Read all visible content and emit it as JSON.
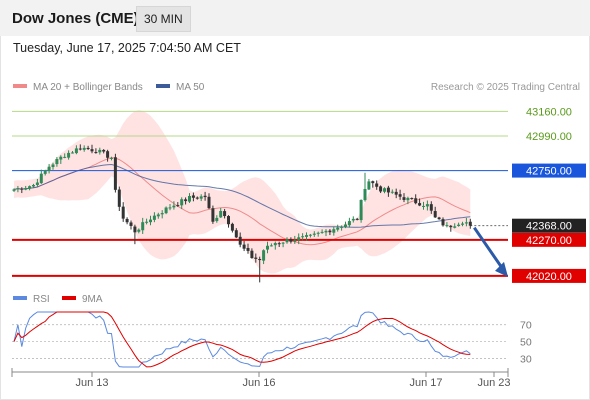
{
  "header": {
    "symbol": "Dow Jones (CME)",
    "interval": "30 MIN",
    "timestamp": "Tuesday, June 17, 2025 7:04:50 AM CET"
  },
  "legend": {
    "ma20": "MA 20 + Bollinger Bands",
    "ma50": "MA 50",
    "copyright": "Research © 2025 Trading Central",
    "rsi": "RSI",
    "ma9": "9MA"
  },
  "colors": {
    "ma20": "#f08a8a",
    "bollinger_fill": "#ffd9d9",
    "ma50": "#3d5a99",
    "resistance_green": "#b5d98a",
    "level_blue": "#1a56db",
    "support_red": "#e00000",
    "last_price_bg": "#222222",
    "candle_up": "#2e8b57",
    "candle_down": "#333333",
    "rsi_line": "#5b8ae0",
    "rsi_ma": "#e00000",
    "arrow": "#2a5aa8"
  },
  "chart_data": [
    {
      "type": "candlestick",
      "title": "",
      "x_ticks": [
        "Jun 13",
        "Jun 16",
        "Jun 17",
        "Jun 23"
      ],
      "ylim": [
        41950,
        43260
      ],
      "levels": [
        {
          "value": 43160.0,
          "label": "43160.00",
          "kind": "resistance"
        },
        {
          "value": 42990.0,
          "label": "42990.00",
          "kind": "resistance"
        },
        {
          "value": 42750.0,
          "label": "42750.00",
          "kind": "pivot"
        },
        {
          "value": 42270.0,
          "label": "42270.00",
          "kind": "support"
        },
        {
          "value": 42020.0,
          "label": "42020.00",
          "kind": "support"
        }
      ],
      "last_price": {
        "value": 42368.0,
        "label": "42368.00"
      },
      "price_anchors": [
        [
          0,
          42620
        ],
        [
          5,
          42650
        ],
        [
          9,
          42780
        ],
        [
          13,
          42860
        ],
        [
          17,
          42910
        ],
        [
          21,
          42890
        ],
        [
          25,
          42840
        ],
        [
          26,
          42600
        ],
        [
          28,
          42420
        ],
        [
          31,
          42330
        ],
        [
          35,
          42420
        ],
        [
          40,
          42500
        ],
        [
          45,
          42560
        ],
        [
          49,
          42570
        ],
        [
          51,
          42390
        ],
        [
          53,
          42480
        ],
        [
          56,
          42350
        ],
        [
          58,
          42230
        ],
        [
          61,
          42150
        ],
        [
          63,
          42130
        ],
        [
          64,
          42200
        ],
        [
          67,
          42250
        ],
        [
          71,
          42270
        ],
        [
          76,
          42290
        ],
        [
          80,
          42330
        ],
        [
          85,
          42380
        ],
        [
          88,
          42420
        ],
        [
          89,
          42530
        ],
        [
          90,
          42640
        ],
        [
          91,
          42680
        ],
        [
          94,
          42620
        ],
        [
          98,
          42580
        ],
        [
          102,
          42540
        ],
        [
          106,
          42510
        ],
        [
          108,
          42420
        ],
        [
          111,
          42360
        ],
        [
          115,
          42400
        ],
        [
          117,
          42380
        ]
      ]
    },
    {
      "type": "line",
      "title": "",
      "ylim": [
        20,
        85
      ],
      "y_ticks": [
        70,
        50,
        30
      ],
      "series": [
        {
          "name": "RSI"
        },
        {
          "name": "9MA"
        }
      ]
    }
  ]
}
